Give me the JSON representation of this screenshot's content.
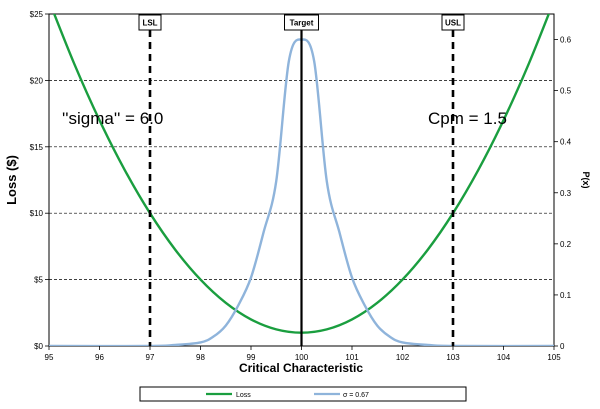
{
  "chart_data": {
    "type": "line",
    "xlabel": "Critical Characteristic",
    "ylabel_left": "Loss ($)",
    "ylabel_right": "P(x)",
    "xlim": [
      95,
      105
    ],
    "ylim_left": [
      0,
      25
    ],
    "ylim_right": [
      0,
      0.65
    ],
    "x_ticks": [
      "95",
      "96",
      "97",
      "98",
      "99",
      "100",
      "101",
      "102",
      "103",
      "104",
      "105"
    ],
    "y_left_ticks": [
      "$0",
      "$5",
      "$10",
      "$15",
      "$20",
      "$25"
    ],
    "y_right_ticks": [
      "0",
      "0.1",
      "0.2",
      "0.3",
      "0.4",
      "0.5",
      "0.6"
    ],
    "grid": "horizontal dashed",
    "series": [
      {
        "name": "Loss",
        "axis": "left",
        "color": "#1a9e3f",
        "x": [
          95,
          95.5,
          96,
          96.5,
          97,
          97.5,
          98,
          98.5,
          99,
          99.5,
          100,
          100.5,
          101,
          101.5,
          102,
          102.5,
          103,
          103.5,
          104,
          104.5,
          105
        ],
        "y": [
          26,
          21.25,
          17,
          13.25,
          10,
          7.25,
          5,
          3.25,
          2,
          1.25,
          1,
          1.25,
          2,
          3.25,
          5,
          7.25,
          10,
          13.25,
          17,
          21.25,
          26
        ]
      },
      {
        "name": "σ = 0.67",
        "axis": "right",
        "color": "#8fb4db",
        "x": [
          95,
          97,
          97.5,
          98,
          98.25,
          98.5,
          98.75,
          99,
          99.25,
          99.5,
          99.75,
          100,
          100.25,
          100.5,
          100.75,
          101,
          101.25,
          101.5,
          101.75,
          102,
          102.5,
          103,
          105
        ],
        "y": [
          0,
          0,
          0.002,
          0.007,
          0.018,
          0.04,
          0.08,
          0.134,
          0.223,
          0.323,
          0.558,
          0.6,
          0.558,
          0.323,
          0.223,
          0.134,
          0.08,
          0.04,
          0.018,
          0.007,
          0.002,
          0,
          0
        ]
      }
    ],
    "reference_lines": [
      {
        "label": "LSL",
        "x": 97,
        "style": "dashed"
      },
      {
        "label": "Target",
        "x": 100,
        "style": "solid"
      },
      {
        "label": "USL",
        "x": 103,
        "style": "dashed"
      }
    ],
    "annotations": [
      {
        "text": "''sigma'' = 6.0"
      },
      {
        "text": "Cpm = 1.5"
      }
    ],
    "legend": {
      "placement": "bottom",
      "entries": [
        "Loss",
        "σ = 0.67"
      ]
    }
  }
}
